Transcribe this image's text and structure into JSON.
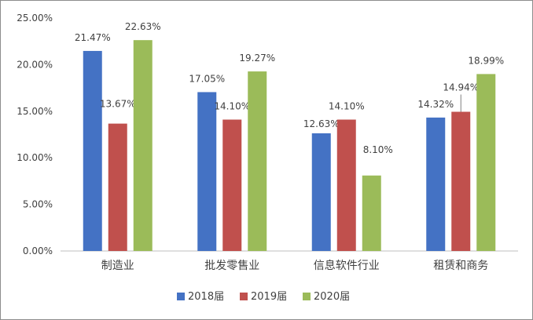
{
  "chart_data": {
    "type": "bar",
    "categories": [
      "制造业",
      "批发零售业",
      "信息软件行业",
      "租赁和商务"
    ],
    "series": [
      {
        "name": "2018届",
        "color": "#4472C4",
        "values": [
          21.47,
          17.05,
          12.63,
          14.32
        ],
        "labels": [
          "21.47%",
          "17.05%",
          "12.63%",
          "14.32%"
        ]
      },
      {
        "name": "2019届",
        "color": "#C0504D",
        "values": [
          13.67,
          14.1,
          14.1,
          14.94
        ],
        "labels": [
          "13.67%",
          "14.10%",
          "14.10%",
          "14.94%"
        ]
      },
      {
        "name": "2020届",
        "color": "#9BBB59",
        "values": [
          22.63,
          19.27,
          8.1,
          18.99
        ],
        "labels": [
          "22.63%",
          "19.27%",
          "8.10%",
          "18.99%"
        ]
      }
    ],
    "yticks": [
      0,
      5,
      10,
      15,
      20,
      25
    ],
    "ytick_labels": [
      "0.00%",
      "5.00%",
      "10.00%",
      "15.00%",
      "20.00%",
      "25.00%"
    ],
    "ylim": [
      0,
      25
    ],
    "title": "",
    "xlabel": "",
    "ylabel": "",
    "grid": false,
    "legend_position": "bottom"
  }
}
